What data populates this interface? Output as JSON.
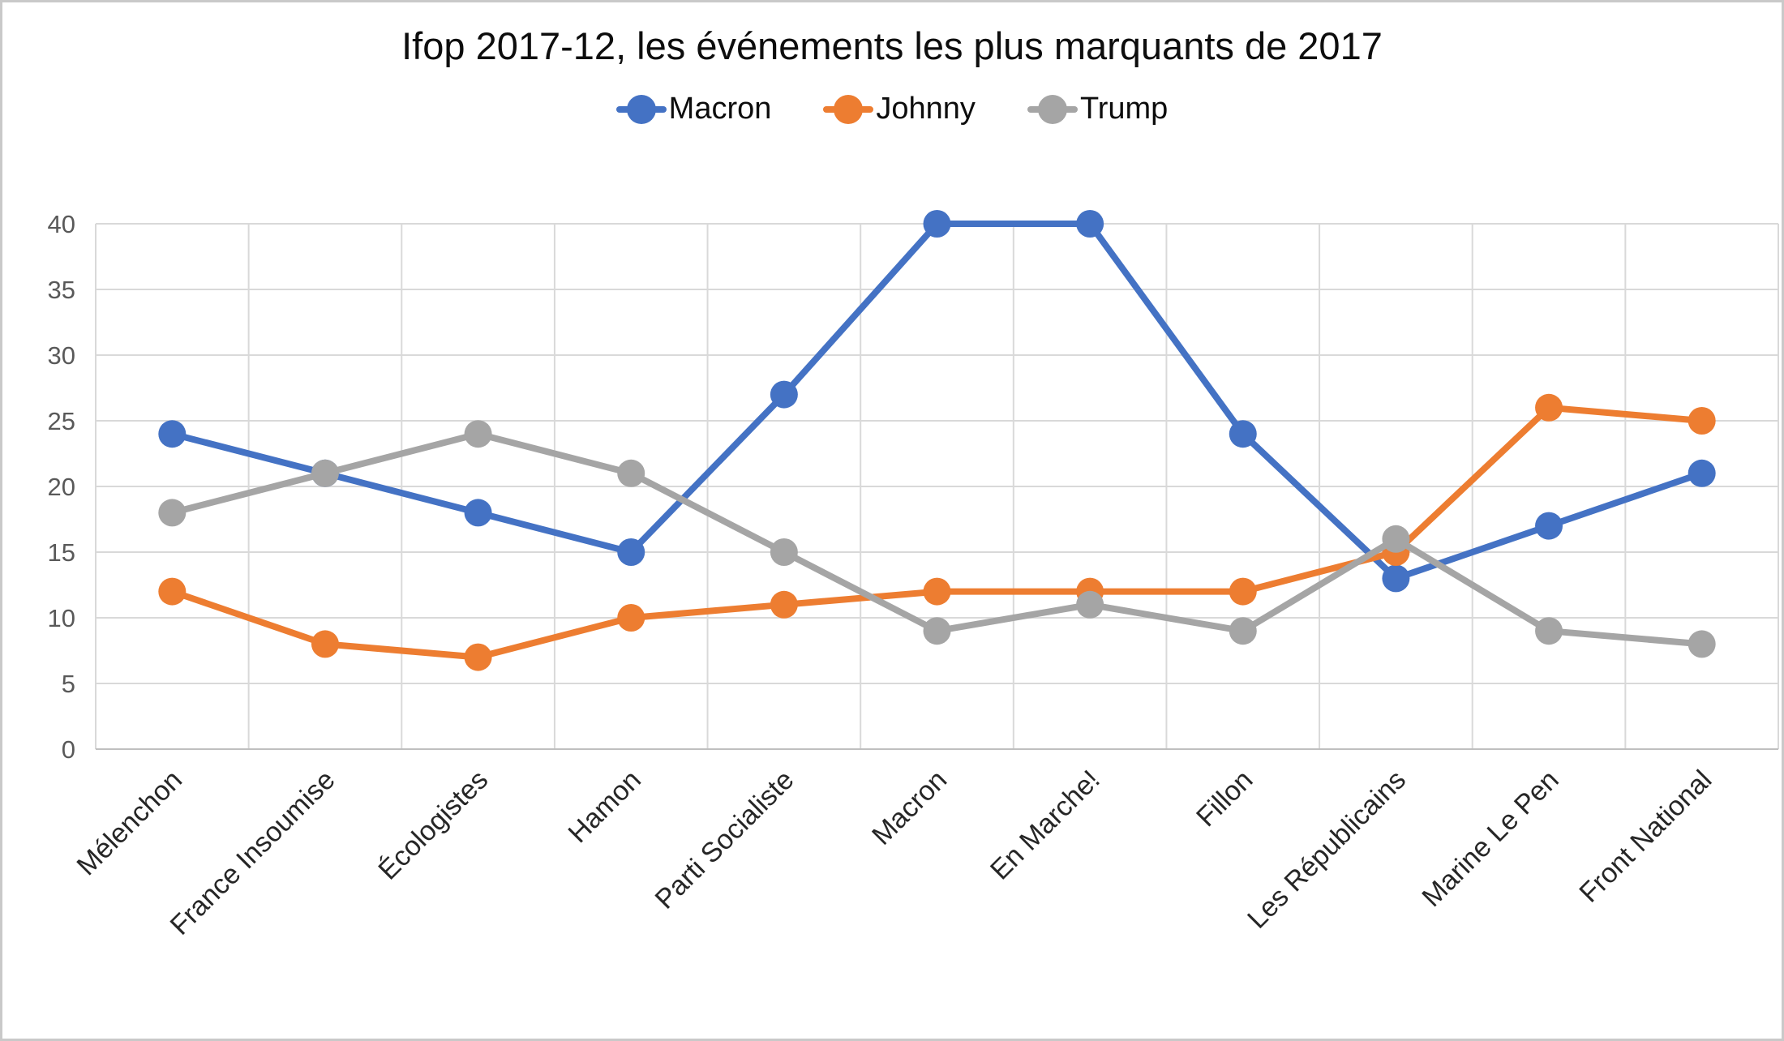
{
  "title": "Ifop 2017-12, les événements les plus marquants de 2017",
  "colors": {
    "macron": "#4472C4",
    "johnny": "#ED7D31",
    "trump": "#A5A5A5",
    "gridline": "#D9D9D9",
    "axis_line": "#BFBFBF",
    "axis_text": "#595959",
    "category_text": "#262626"
  },
  "chart_data": {
    "type": "line",
    "title": "Ifop 2017-12, les événements les plus marquants de 2017",
    "categories": [
      "Mélenchon",
      "France Insoumise",
      "Écologistes",
      "Hamon",
      "Parti Socialiste",
      "Macron",
      "En Marche!",
      "Fillon",
      "Les Républicains",
      "Marine Le Pen",
      "Front National"
    ],
    "series": [
      {
        "name": "Macron",
        "color": "#4472C4",
        "values": [
          24,
          21,
          18,
          15,
          27,
          40,
          40,
          24,
          13,
          17,
          21
        ]
      },
      {
        "name": "Johnny",
        "color": "#ED7D31",
        "values": [
          12,
          8,
          7,
          10,
          11,
          12,
          12,
          12,
          15,
          26,
          25
        ]
      },
      {
        "name": "Trump",
        "color": "#A5A5A5",
        "values": [
          18,
          21,
          24,
          21,
          15,
          9,
          11,
          9,
          16,
          9,
          8
        ]
      }
    ],
    "y_ticks": [
      0,
      5,
      10,
      15,
      20,
      25,
      30,
      35,
      40
    ],
    "ylim": [
      0,
      40
    ],
    "grid": true,
    "legend_position": "top",
    "marker": "circle"
  }
}
